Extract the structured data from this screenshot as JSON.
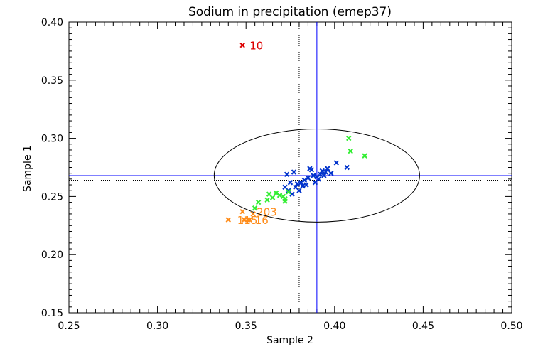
{
  "chart_data": {
    "type": "scatter",
    "title": "Sodium in precipitation (emep37)",
    "xlabel": "Sample 2",
    "ylabel": "Sample 1",
    "xlim": [
      0.25,
      0.5
    ],
    "ylim": [
      0.15,
      0.4
    ],
    "x_ticks": [
      "0.25",
      "0.30",
      "0.35",
      "0.40",
      "0.45",
      "0.50"
    ],
    "y_ticks": [
      "0.15",
      "0.20",
      "0.25",
      "0.30",
      "0.35",
      "0.40"
    ],
    "reference_lines": {
      "vertical_solid": 0.39,
      "horizontal_solid": 0.268,
      "vertical_dotted": 0.38,
      "horizontal_dotted": 0.264
    },
    "ellipse": {
      "center": [
        0.39,
        0.268
      ],
      "x_radius": 0.058,
      "y_radius": 0.04
    },
    "colors": {
      "axes": "#000000",
      "reference_solid": "#0000ff",
      "reference_dotted": "#000000",
      "ellipse": "#000000"
    },
    "series": [
      {
        "color": "#0033cc",
        "points": [
          [
            0.372,
            0.258
          ],
          [
            0.373,
            0.269
          ],
          [
            0.374,
            0.255
          ],
          [
            0.375,
            0.262
          ],
          [
            0.376,
            0.252
          ],
          [
            0.377,
            0.271
          ],
          [
            0.378,
            0.258
          ],
          [
            0.379,
            0.261
          ],
          [
            0.38,
            0.255
          ],
          [
            0.381,
            0.262
          ],
          [
            0.382,
            0.259
          ],
          [
            0.383,
            0.264
          ],
          [
            0.384,
            0.26
          ],
          [
            0.385,
            0.266
          ],
          [
            0.386,
            0.274
          ],
          [
            0.387,
            0.273
          ],
          [
            0.388,
            0.268
          ],
          [
            0.389,
            0.262
          ],
          [
            0.39,
            0.267
          ],
          [
            0.391,
            0.265
          ],
          [
            0.392,
            0.269
          ],
          [
            0.393,
            0.272
          ],
          [
            0.394,
            0.268
          ],
          [
            0.395,
            0.271
          ],
          [
            0.396,
            0.274
          ],
          [
            0.398,
            0.27
          ],
          [
            0.401,
            0.279
          ],
          [
            0.407,
            0.275
          ]
        ]
      },
      {
        "color": "#33ee33",
        "points": [
          [
            0.355,
            0.24
          ],
          [
            0.357,
            0.245
          ],
          [
            0.362,
            0.247
          ],
          [
            0.363,
            0.252
          ],
          [
            0.365,
            0.249
          ],
          [
            0.367,
            0.253
          ],
          [
            0.369,
            0.251
          ],
          [
            0.371,
            0.25
          ],
          [
            0.372,
            0.248
          ],
          [
            0.372,
            0.246
          ],
          [
            0.374,
            0.254
          ],
          [
            0.408,
            0.3
          ],
          [
            0.409,
            0.289
          ],
          [
            0.417,
            0.285
          ]
        ]
      },
      {
        "color": "#ff8c1a",
        "points": [
          [
            0.34,
            0.23
          ],
          [
            0.348,
            0.237
          ],
          [
            0.349,
            0.23
          ],
          [
            0.351,
            0.23
          ],
          [
            0.352,
            0.23
          ],
          [
            0.354,
            0.235
          ]
        ]
      },
      {
        "color": "#dd0000",
        "points": [
          [
            0.348,
            0.38
          ]
        ]
      }
    ],
    "annotations": [
      {
        "text": "10",
        "x": 0.348,
        "y": 0.38,
        "color": "#dd0000"
      },
      {
        "text": "203",
        "x": 0.352,
        "y": 0.237,
        "color": "#ff8c1a"
      },
      {
        "text": "115",
        "x": 0.341,
        "y": 0.23,
        "color": "#ff8c1a"
      },
      {
        "text": "16",
        "x": 0.351,
        "y": 0.23,
        "color": "#ff8c1a"
      }
    ]
  }
}
